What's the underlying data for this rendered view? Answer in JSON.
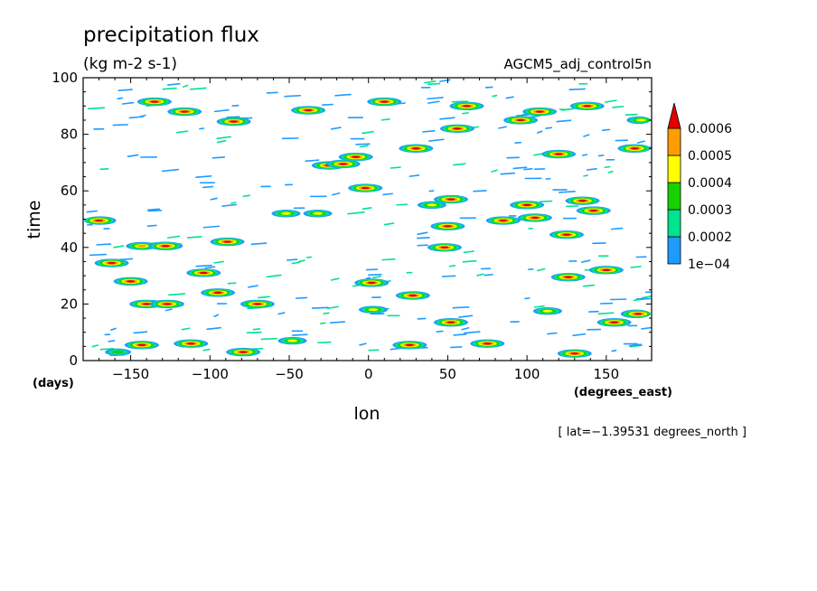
{
  "chart_data": {
    "type": "heatmap",
    "title": "precipitation flux",
    "units": "(kg m-2 s-1)",
    "dataset": "AGCM5_adj_control5n",
    "xlabel": "lon",
    "ylabel": "time",
    "x_unit_label": "(degrees_east)",
    "y_unit_label": "(days)",
    "xlim": [
      -180,
      178.6
    ],
    "ylim": [
      0,
      100
    ],
    "x_ticks": [
      -150,
      -100,
      -50,
      0,
      50,
      100,
      150
    ],
    "x_tick_labels": [
      "−150",
      "−100",
      "−50",
      "0",
      "50",
      "100",
      "150"
    ],
    "y_ticks": [
      0,
      20,
      40,
      60,
      80,
      100
    ],
    "y_tick_labels": [
      "0",
      "20",
      "40",
      "60",
      "80",
      "100"
    ],
    "annotation": "[ lat=−1.39531 degrees_north ]",
    "colorbar": {
      "levels": [
        0.0001,
        0.0002,
        0.0003,
        0.0004,
        0.0005,
        0.0006
      ],
      "labels": [
        "1e−04",
        "0.0002",
        "0.0003",
        "0.0004",
        "0.0005",
        "0.0006"
      ],
      "colors": [
        "#1e9bff",
        "#00e38f",
        "#18d200",
        "#ffff00",
        "#ff9d00",
        "#e10000"
      ],
      "extend": "max"
    },
    "features": [
      {
        "lon": -170,
        "t": 49.5,
        "level": 6
      },
      {
        "lon": -162,
        "t": 34.5,
        "level": 6
      },
      {
        "lon": -158,
        "t": 3,
        "level": 3
      },
      {
        "lon": -150,
        "t": 28,
        "level": 6
      },
      {
        "lon": -143,
        "t": 5.5,
        "level": 6
      },
      {
        "lon": -143,
        "t": 40.5,
        "level": 5
      },
      {
        "lon": -140,
        "t": 20,
        "level": 6
      },
      {
        "lon": -135,
        "t": 91.5,
        "level": 6
      },
      {
        "lon": -128,
        "t": 40.5,
        "level": 6
      },
      {
        "lon": -127,
        "t": 20,
        "level": 6
      },
      {
        "lon": -116,
        "t": 88,
        "level": 6
      },
      {
        "lon": -112,
        "t": 6,
        "level": 6
      },
      {
        "lon": -104,
        "t": 31,
        "level": 6
      },
      {
        "lon": -95,
        "t": 24,
        "level": 6
      },
      {
        "lon": -89,
        "t": 42,
        "level": 6
      },
      {
        "lon": -85,
        "t": 84.5,
        "level": 6
      },
      {
        "lon": -79,
        "t": 3,
        "level": 6
      },
      {
        "lon": -70,
        "t": 20,
        "level": 6
      },
      {
        "lon": -52,
        "t": 52,
        "level": 4
      },
      {
        "lon": -48,
        "t": 7,
        "level": 4
      },
      {
        "lon": -38,
        "t": 88.5,
        "level": 6
      },
      {
        "lon": -32,
        "t": 52,
        "level": 4
      },
      {
        "lon": -25,
        "t": 69,
        "level": 6
      },
      {
        "lon": -16,
        "t": 69.5,
        "level": 6
      },
      {
        "lon": -8,
        "t": 72,
        "level": 6
      },
      {
        "lon": -2,
        "t": 61,
        "level": 6
      },
      {
        "lon": 2,
        "t": 27.5,
        "level": 6
      },
      {
        "lon": 3,
        "t": 18,
        "level": 4
      },
      {
        "lon": 10,
        "t": 91.5,
        "level": 6
      },
      {
        "lon": 26,
        "t": 5.5,
        "level": 6
      },
      {
        "lon": 28,
        "t": 23,
        "level": 6
      },
      {
        "lon": 30,
        "t": 75,
        "level": 6
      },
      {
        "lon": 40,
        "t": 55,
        "level": 4
      },
      {
        "lon": 48,
        "t": 40,
        "level": 6
      },
      {
        "lon": 50,
        "t": 47.5,
        "level": 6
      },
      {
        "lon": 52,
        "t": 57,
        "level": 6
      },
      {
        "lon": 52,
        "t": 13.5,
        "level": 6
      },
      {
        "lon": 56,
        "t": 82,
        "level": 6
      },
      {
        "lon": 62,
        "t": 90,
        "level": 6
      },
      {
        "lon": 75,
        "t": 6,
        "level": 6
      },
      {
        "lon": 85,
        "t": 49.5,
        "level": 6
      },
      {
        "lon": 96,
        "t": 85,
        "level": 6
      },
      {
        "lon": 100,
        "t": 55,
        "level": 6
      },
      {
        "lon": 105,
        "t": 50.5,
        "level": 6
      },
      {
        "lon": 108,
        "t": 88,
        "level": 6
      },
      {
        "lon": 113,
        "t": 17.5,
        "level": 4
      },
      {
        "lon": 120,
        "t": 73,
        "level": 6
      },
      {
        "lon": 125,
        "t": 44.5,
        "level": 6
      },
      {
        "lon": 126,
        "t": 29.5,
        "level": 6
      },
      {
        "lon": 130,
        "t": 2.5,
        "level": 6
      },
      {
        "lon": 135,
        "t": 56.5,
        "level": 6
      },
      {
        "lon": 138,
        "t": 90,
        "level": 6
      },
      {
        "lon": 142,
        "t": 53,
        "level": 6
      },
      {
        "lon": 150,
        "t": 32,
        "level": 6
      },
      {
        "lon": 155,
        "t": 13.5,
        "level": 6
      },
      {
        "lon": 168,
        "t": 75,
        "level": 6
      },
      {
        "lon": 170,
        "t": 16.5,
        "level": 6
      },
      {
        "lon": 172,
        "t": 85,
        "level": 4
      }
    ]
  }
}
